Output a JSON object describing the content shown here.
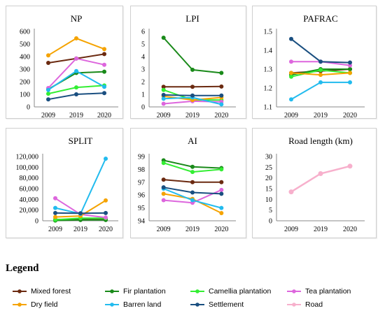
{
  "legend": {
    "title": "Legend",
    "items": [
      {
        "label": "Mixed forest",
        "color": "#6b2a10"
      },
      {
        "label": "Fir plantation",
        "color": "#1a8a1a"
      },
      {
        "label": "Camellia plantation",
        "color": "#33ee33"
      },
      {
        "label": "Tea plantation",
        "color": "#dd66dd"
      },
      {
        "label": "Dry field",
        "color": "#f5a300"
      },
      {
        "label": "Barren land",
        "color": "#22bbee"
      },
      {
        "label": "Settlement",
        "color": "#1a4f80"
      },
      {
        "label": "Road",
        "color": "#f7b0cc"
      }
    ]
  },
  "chart_data": [
    {
      "type": "line",
      "title": "NP",
      "categories": [
        "2009",
        "2019",
        "2020"
      ],
      "ylim": [
        0,
        600
      ],
      "yticks": [
        "0",
        "100",
        "200",
        "300",
        "400",
        "500",
        "600"
      ],
      "series": [
        {
          "name": "Mixed forest",
          "values": [
            350,
            385,
            420
          ]
        },
        {
          "name": "Fir plantation",
          "values": [
            140,
            270,
            280
          ]
        },
        {
          "name": "Camellia plantation",
          "values": [
            105,
            155,
            170
          ]
        },
        {
          "name": "Tea plantation",
          "values": [
            150,
            385,
            335
          ]
        },
        {
          "name": "Dry field",
          "values": [
            410,
            545,
            460
          ]
        },
        {
          "name": "Barren land",
          "values": [
            135,
            285,
            160
          ]
        },
        {
          "name": "Settlement",
          "values": [
            60,
            100,
            110
          ]
        }
      ]
    },
    {
      "type": "line",
      "title": "LPI",
      "categories": [
        "2009",
        "2019",
        "2020"
      ],
      "ylim": [
        0,
        6
      ],
      "yticks": [
        "0",
        "1",
        "2",
        "3",
        "4",
        "5",
        "6"
      ],
      "series": [
        {
          "name": "Mixed forest",
          "values": [
            1.6,
            1.6,
            1.62
          ]
        },
        {
          "name": "Fir plantation",
          "values": [
            5.5,
            2.95,
            2.7
          ]
        },
        {
          "name": "Camellia plantation",
          "values": [
            1.35,
            0.55,
            0.55
          ]
        },
        {
          "name": "Tea plantation",
          "values": [
            0.25,
            0.45,
            0.4
          ]
        },
        {
          "name": "Dry field",
          "values": [
            0.85,
            0.55,
            0.75
          ]
        },
        {
          "name": "Barren land",
          "values": [
            0.65,
            0.75,
            0.2
          ]
        },
        {
          "name": "Settlement",
          "values": [
            0.95,
            0.9,
            0.9
          ]
        }
      ]
    },
    {
      "type": "line",
      "title": "PAFRAC",
      "categories": [
        "2009",
        "2019",
        "2020"
      ],
      "ylim": [
        1.1,
        1.5
      ],
      "yticks": [
        "1.1",
        "1.2",
        "1.3",
        "1.4",
        "1.5"
      ],
      "series": [
        {
          "name": "Mixed forest",
          "values": [
            1.28,
            1.29,
            1.3
          ]
        },
        {
          "name": "Fir plantation",
          "values": [
            1.27,
            1.3,
            1.3
          ]
        },
        {
          "name": "Camellia plantation",
          "values": [
            1.26,
            1.295,
            1.28
          ]
        },
        {
          "name": "Tea plantation",
          "values": [
            1.34,
            1.34,
            1.32
          ]
        },
        {
          "name": "Dry field",
          "values": [
            1.28,
            1.27,
            1.28
          ]
        },
        {
          "name": "Barren land",
          "values": [
            1.14,
            1.23,
            1.23
          ]
        },
        {
          "name": "Settlement",
          "values": [
            1.46,
            1.34,
            1.335
          ]
        }
      ]
    },
    {
      "type": "line",
      "title": "SPLIT",
      "categories": [
        "2009",
        "2019",
        "2020"
      ],
      "ylim": [
        0,
        120000
      ],
      "yticks": [
        "0",
        "20,000",
        "40,000",
        "60,000",
        "80,000",
        "100,000",
        "120,000"
      ],
      "series": [
        {
          "name": "Mixed forest",
          "values": [
            2500,
            2500,
            2500
          ]
        },
        {
          "name": "Fir plantation",
          "values": [
            500,
            1500,
            1500
          ]
        },
        {
          "name": "Camellia plantation",
          "values": [
            2000,
            5000,
            5000
          ]
        },
        {
          "name": "Tea plantation",
          "values": [
            42000,
            12000,
            6000
          ]
        },
        {
          "name": "Dry field",
          "values": [
            7000,
            9000,
            38000
          ]
        },
        {
          "name": "Barren land",
          "values": [
            24000,
            13000,
            116000
          ]
        },
        {
          "name": "Settlement",
          "values": [
            14500,
            14000,
            14500
          ]
        }
      ]
    },
    {
      "type": "line",
      "title": "AI",
      "categories": [
        "2009",
        "2019",
        "2020"
      ],
      "ylim": [
        94,
        99
      ],
      "yticks": [
        "94",
        "95",
        "96",
        "97",
        "98",
        "99"
      ],
      "series": [
        {
          "name": "Mixed forest",
          "values": [
            97.2,
            97.0,
            97.0
          ]
        },
        {
          "name": "Fir plantation",
          "values": [
            98.7,
            98.2,
            98.1
          ]
        },
        {
          "name": "Camellia plantation",
          "values": [
            98.5,
            97.8,
            98.0
          ]
        },
        {
          "name": "Tea plantation",
          "values": [
            95.6,
            95.4,
            96.4
          ]
        },
        {
          "name": "Dry field",
          "values": [
            96.1,
            95.7,
            94.6
          ]
        },
        {
          "name": "Barren land",
          "values": [
            96.5,
            95.6,
            95.0
          ]
        },
        {
          "name": "Settlement",
          "values": [
            96.6,
            96.2,
            96.1
          ]
        }
      ]
    },
    {
      "type": "line",
      "title": "Road length (km)",
      "categories": [
        "2009",
        "2019",
        "2020"
      ],
      "ylim": [
        0,
        30
      ],
      "yticks": [
        "0",
        "5",
        "10",
        "15",
        "20",
        "25",
        "30"
      ],
      "series": [
        {
          "name": "Road",
          "values": [
            13.5,
            22,
            25.5
          ]
        }
      ]
    }
  ]
}
